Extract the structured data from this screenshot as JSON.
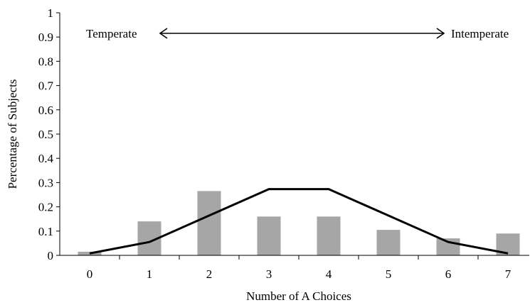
{
  "chart_data": {
    "type": "bar",
    "x": [
      0,
      1,
      2,
      3,
      4,
      5,
      6,
      7
    ],
    "xlabel": "Number of A Choices",
    "ylabel": "Percentage of Subjects",
    "ylim": [
      0,
      1
    ],
    "yticks": [
      "0",
      "0.1",
      "0.2",
      "0.3",
      "0.4",
      "0.5",
      "0.6",
      "0.7",
      "0.8",
      "0.9",
      "1"
    ],
    "series": [
      {
        "type": "bar",
        "values": [
          0.015,
          0.14,
          0.265,
          0.16,
          0.16,
          0.105,
          0.07,
          0.09
        ],
        "color": "#a6a6a6"
      },
      {
        "type": "line",
        "values": [
          0.008,
          0.055,
          0.164,
          0.273,
          0.273,
          0.164,
          0.055,
          0.008
        ],
        "color": "#000000"
      }
    ],
    "annotations": {
      "left_label": "Temperate",
      "right_label": "Intemperate"
    },
    "grid": false,
    "legend": "none"
  }
}
